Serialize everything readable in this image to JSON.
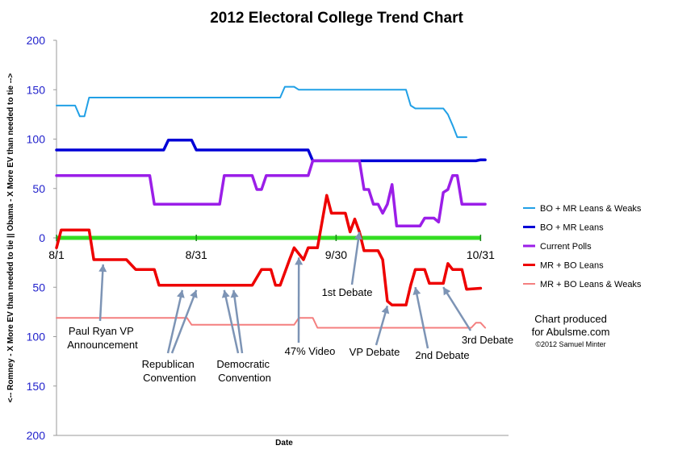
{
  "chart_data": {
    "type": "line",
    "title": "2012 Electoral College Trend Chart",
    "xlabel": "Date",
    "ylabel": "<-- Romney - X More EV than needed to tie || Obama - X More EV than needed to tie -->",
    "ylim": [
      -200,
      200
    ],
    "xlim": [
      0,
      97
    ],
    "y_ticks": [
      200,
      150,
      100,
      50,
      0,
      -50,
      -100,
      -150,
      -200
    ],
    "y_tick_labels": [
      "200",
      "150",
      "100",
      "50",
      "0",
      "50",
      "100",
      "150",
      "200"
    ],
    "x_ticks": [
      0,
      30,
      60,
      91
    ],
    "x_tick_labels": [
      "8/1",
      "8/31",
      "9/30",
      "10/31"
    ],
    "grid": false,
    "legend_position": "right",
    "series": [
      {
        "name": "BO + MR Leans & Weaks",
        "color": "#21a0e6",
        "points": [
          [
            0,
            134
          ],
          [
            4,
            134
          ],
          [
            5,
            123
          ],
          [
            6,
            123
          ],
          [
            7,
            142
          ],
          [
            48,
            142
          ],
          [
            49,
            153
          ],
          [
            51,
            153
          ],
          [
            52,
            150
          ],
          [
            75,
            150
          ],
          [
            76,
            134
          ],
          [
            77,
            131
          ],
          [
            83,
            131
          ],
          [
            84,
            125
          ],
          [
            85,
            114
          ],
          [
            86,
            102
          ],
          [
            88,
            102
          ]
        ]
      },
      {
        "name": "BO + MR Leans",
        "color": "#0000d6",
        "points": [
          [
            0,
            89
          ],
          [
            23,
            89
          ],
          [
            24,
            99
          ],
          [
            29,
            99
          ],
          [
            30,
            89
          ],
          [
            54,
            89
          ],
          [
            55,
            78
          ],
          [
            90,
            78
          ],
          [
            91,
            79
          ],
          [
            92,
            79
          ]
        ]
      },
      {
        "name": "Current Polls",
        "color": "#9b1ee8",
        "points": [
          [
            0,
            63
          ],
          [
            20,
            63
          ],
          [
            21,
            34
          ],
          [
            35,
            34
          ],
          [
            36,
            63
          ],
          [
            42,
            63
          ],
          [
            43,
            49
          ],
          [
            44,
            49
          ],
          [
            45,
            63
          ],
          [
            54,
            63
          ],
          [
            55,
            78
          ],
          [
            65,
            78
          ],
          [
            66,
            49
          ],
          [
            67,
            49
          ],
          [
            68,
            34
          ],
          [
            69,
            34
          ],
          [
            70,
            25
          ],
          [
            71,
            34
          ],
          [
            72,
            54
          ],
          [
            73,
            12
          ],
          [
            78,
            12
          ],
          [
            79,
            20
          ],
          [
            81,
            20
          ],
          [
            82,
            16
          ],
          [
            83,
            46
          ],
          [
            84,
            49
          ],
          [
            85,
            63
          ],
          [
            86,
            63
          ],
          [
            87,
            34
          ],
          [
            92,
            34
          ]
        ]
      },
      {
        "name": "MR + BO Leans",
        "color": "#ee0000",
        "points": [
          [
            0,
            -10
          ],
          [
            1,
            8
          ],
          [
            7,
            8
          ],
          [
            8,
            -22
          ],
          [
            15,
            -22
          ],
          [
            17,
            -32
          ],
          [
            21,
            -32
          ],
          [
            22,
            -48
          ],
          [
            42,
            -48
          ],
          [
            44,
            -32
          ],
          [
            46,
            -32
          ],
          [
            47,
            -48
          ],
          [
            48,
            -48
          ],
          [
            50,
            -22
          ],
          [
            51,
            -10
          ],
          [
            53,
            -22
          ],
          [
            54,
            -10
          ],
          [
            56,
            -10
          ],
          [
            58,
            43
          ],
          [
            59,
            25
          ],
          [
            62,
            25
          ],
          [
            63,
            6
          ],
          [
            64,
            19
          ],
          [
            65,
            6
          ],
          [
            66,
            -13
          ],
          [
            69,
            -13
          ],
          [
            70,
            -22
          ],
          [
            71,
            -64
          ],
          [
            72,
            -68
          ],
          [
            75,
            -68
          ],
          [
            76,
            -48
          ],
          [
            77,
            -32
          ],
          [
            79,
            -32
          ],
          [
            80,
            -46
          ],
          [
            83,
            -46
          ],
          [
            84,
            -26
          ],
          [
            85,
            -32
          ],
          [
            87,
            -32
          ],
          [
            88,
            -52
          ],
          [
            91,
            -51
          ]
        ]
      },
      {
        "name": "MR + BO Leans & Weaks",
        "color": "#f47f7f",
        "points": [
          [
            0,
            -81
          ],
          [
            28,
            -81
          ],
          [
            29,
            -88
          ],
          [
            51,
            -88
          ],
          [
            52,
            -81
          ],
          [
            55,
            -81
          ],
          [
            56,
            -91
          ],
          [
            89,
            -91
          ],
          [
            90,
            -86
          ],
          [
            91,
            -86
          ],
          [
            92,
            -91
          ]
        ]
      }
    ],
    "zero_line": {
      "color": "#33dd22",
      "y": 0
    },
    "annotations": [
      {
        "id": "paul-ryan",
        "lines": [
          "Paul Ryan VP",
          "Announcement"
        ],
        "arrows_to": [
          [
            10,
            -22
          ]
        ]
      },
      {
        "id": "republican",
        "lines": [
          "Republican",
          "Convention"
        ],
        "arrows_to": [
          [
            27,
            -48
          ],
          [
            30,
            -48
          ]
        ]
      },
      {
        "id": "democratic",
        "lines": [
          "Democratic",
          "Convention"
        ],
        "arrows_to": [
          [
            36,
            -48
          ],
          [
            38,
            -48
          ]
        ]
      },
      {
        "id": "video",
        "lines": [
          "47% Video"
        ],
        "arrows_to": [
          [
            52,
            -15
          ]
        ]
      },
      {
        "id": "first-debate",
        "lines": [
          "1st Debate"
        ],
        "arrows_to": [
          [
            65,
            6
          ]
        ]
      },
      {
        "id": "vp-debate",
        "lines": [
          "VP Debate"
        ],
        "arrows_to": [
          [
            71,
            -64
          ]
        ]
      },
      {
        "id": "second-debate",
        "lines": [
          "2nd Debate"
        ],
        "arrows_to": [
          [
            77,
            -45
          ]
        ]
      },
      {
        "id": "third-debate",
        "lines": [
          "3rd Debate"
        ],
        "arrows_to": [
          [
            83,
            -45
          ]
        ]
      }
    ]
  },
  "credit": {
    "line1": "Chart produced",
    "line2": "for Abulsme.com",
    "line3": "©2012 Samuel Minter"
  }
}
